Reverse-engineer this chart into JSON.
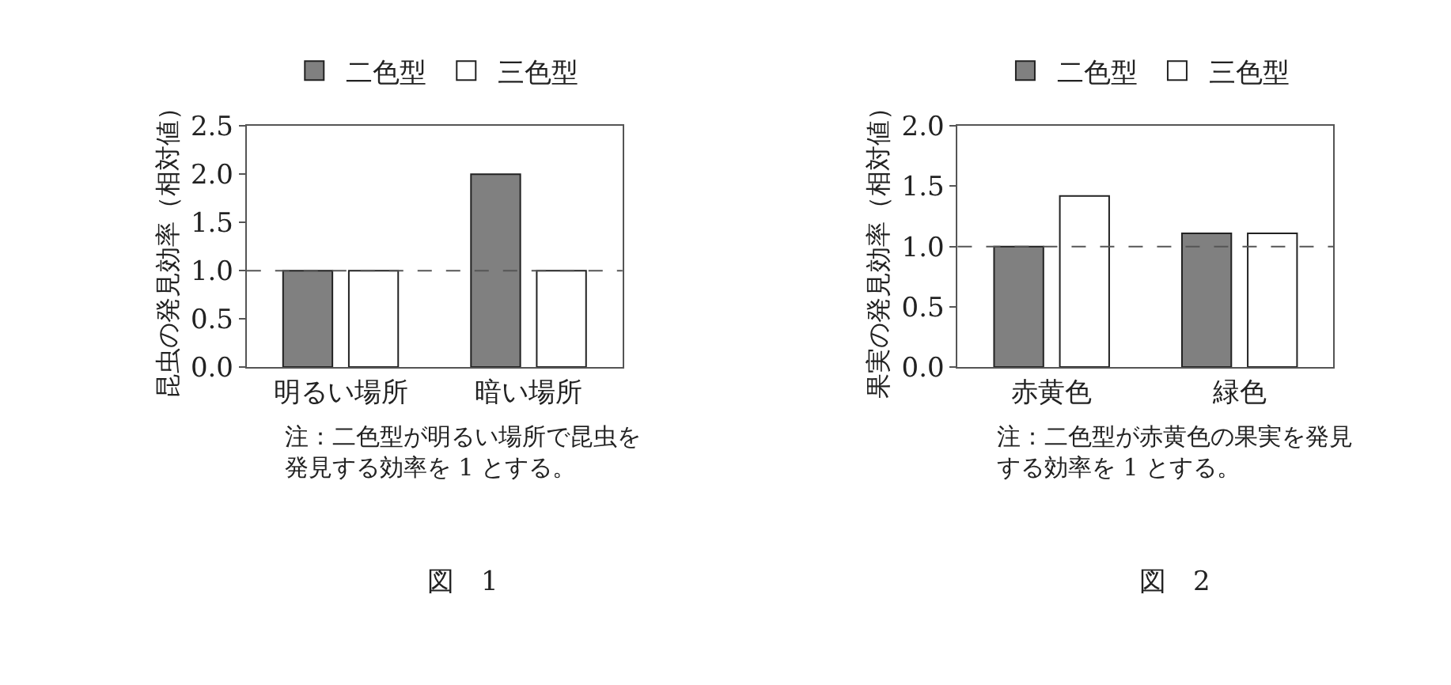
{
  "chart_data": [
    {
      "type": "bar",
      "title": "図　1",
      "ylabel": "昆虫の発見効率（相対値）",
      "categories": [
        "明るい場所",
        "暗い場所"
      ],
      "series": [
        {
          "name": "二色型",
          "color": "#808080",
          "values": [
            1.0,
            2.0
          ]
        },
        {
          "name": "三色型",
          "color": "#ffffff",
          "values": [
            1.0,
            1.0
          ]
        }
      ],
      "ylim": [
        0,
        2.5
      ],
      "yticks": [
        {
          "value": 0,
          "label": "0.0"
        },
        0.5,
        {
          "value": 1,
          "label": "1.0"
        },
        1.5,
        {
          "value": 2,
          "label": "2.0"
        },
        2.5
      ],
      "ref_lines": [
        {
          "axis": "y",
          "value": 1,
          "color": "#555555",
          "line_style": "dashed"
        }
      ],
      "annotations": [
        "注：二色型が明るい場所で昆虫を発見する効率を 1 とする。"
      ],
      "legend": "top"
    },
    {
      "type": "bar",
      "title": "図　2",
      "ylabel": "果実の発見効率（相対値）",
      "categories": [
        "赤黄色",
        "緑色"
      ],
      "series": [
        {
          "name": "二色型",
          "color": "#808080",
          "values": [
            1.0,
            1.11
          ]
        },
        {
          "name": "三色型",
          "color": "#ffffff",
          "values": [
            1.42,
            1.11
          ]
        }
      ],
      "ylim": [
        0,
        2.0
      ],
      "yticks": [
        {
          "value": 0,
          "label": "0.0"
        },
        0.5,
        {
          "value": 1,
          "label": "1.0"
        },
        1.5,
        {
          "value": 2,
          "label": "2.0"
        }
      ],
      "ref_lines": [
        {
          "axis": "y",
          "value": 1,
          "color": "#555555",
          "line_style": "dashed"
        }
      ],
      "annotations": [
        "注：二色型が赤黄色の果実を発見する効率を 1 とする。"
      ],
      "legend": "top"
    }
  ]
}
